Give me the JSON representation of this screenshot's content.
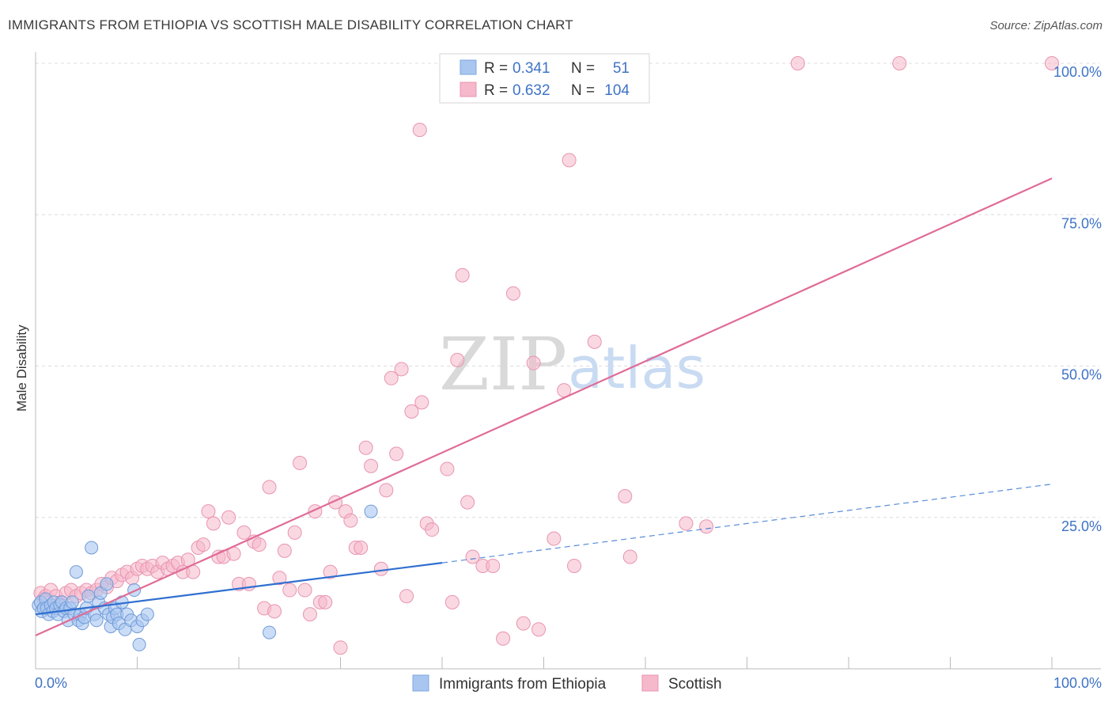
{
  "source": "Source: ZipAtlas.com",
  "colors": {
    "ethiopia": "#2f6fd0",
    "scottish": "#e06b97",
    "ethiopia_fill": "#a9c6f0",
    "scottish_fill": "#f6b8cb",
    "axis_text": "#3e73c6"
  },
  "chart_data": {
    "type": "scatter",
    "title": "IMMIGRANTS FROM ETHIOPIA VS SCOTTISH MALE DISABILITY CORRELATION CHART",
    "xlabel": "",
    "ylabel": "Male Disability",
    "xlim": [
      0,
      100
    ],
    "ylim": [
      0,
      100
    ],
    "x_tick_labels": [
      "0.0%",
      "100.0%"
    ],
    "y_tick_labels": [
      "25.0%",
      "50.0%",
      "75.0%",
      "100.0%"
    ],
    "y_ticks": [
      25,
      50,
      75,
      100
    ],
    "grid": "horizontal-dashed",
    "watermark": {
      "zip": "ZIP",
      "atlas": "atlas"
    },
    "legend_stats": [
      {
        "r_label": "R =",
        "r_value": "0.341",
        "n_label": "N =",
        "n_value": "51"
      },
      {
        "r_label": "R =",
        "r_value": "0.632",
        "n_label": "N =",
        "n_value": "104"
      }
    ],
    "series": [
      {
        "name": "Immigrants from Ethiopia",
        "trend": {
          "x0": 0,
          "y0": 9.0,
          "x1": 40,
          "y1": 17.5,
          "dash_to_x": 100,
          "dash_to_y": 30.5
        },
        "points": [
          [
            0.3,
            10.5
          ],
          [
            0.5,
            11
          ],
          [
            0.6,
            9.5
          ],
          [
            0.8,
            10
          ],
          [
            1,
            11.5
          ],
          [
            1.1,
            10
          ],
          [
            1.3,
            9
          ],
          [
            1.5,
            10.5
          ],
          [
            1.7,
            9.5
          ],
          [
            1.8,
            11
          ],
          [
            2,
            10
          ],
          [
            2.2,
            9
          ],
          [
            2.4,
            10.5
          ],
          [
            2.6,
            11
          ],
          [
            2.8,
            9.5
          ],
          [
            3,
            10
          ],
          [
            3.2,
            8
          ],
          [
            3.4,
            10
          ],
          [
            3.6,
            11
          ],
          [
            3.8,
            9
          ],
          [
            4,
            16
          ],
          [
            4.2,
            8
          ],
          [
            4.4,
            9
          ],
          [
            4.6,
            7.5
          ],
          [
            4.8,
            8.5
          ],
          [
            5,
            10
          ],
          [
            5.2,
            12
          ],
          [
            5.5,
            20
          ],
          [
            5.8,
            9
          ],
          [
            6,
            8
          ],
          [
            6.2,
            11
          ],
          [
            6.4,
            12.5
          ],
          [
            6.8,
            10
          ],
          [
            7,
            14
          ],
          [
            7.2,
            9
          ],
          [
            7.4,
            7
          ],
          [
            7.6,
            8.5
          ],
          [
            7.8,
            10
          ],
          [
            8,
            9
          ],
          [
            8.2,
            7.5
          ],
          [
            8.5,
            11
          ],
          [
            8.8,
            6.5
          ],
          [
            9,
            9
          ],
          [
            9.4,
            8
          ],
          [
            9.7,
            13
          ],
          [
            10,
            7
          ],
          [
            10.2,
            4
          ],
          [
            10.5,
            8
          ],
          [
            11,
            9
          ],
          [
            23,
            6
          ],
          [
            33,
            26
          ]
        ]
      },
      {
        "name": "Scottish",
        "trend": {
          "x0": 0,
          "y0": 5.5,
          "x1": 100,
          "y1": 81
        },
        "points": [
          [
            0.5,
            12.5
          ],
          [
            0.8,
            11.5
          ],
          [
            1,
            12
          ],
          [
            1.5,
            13
          ],
          [
            2,
            12
          ],
          [
            2.5,
            11
          ],
          [
            3,
            12.5
          ],
          [
            3.5,
            13
          ],
          [
            4,
            12
          ],
          [
            4.5,
            12.5
          ],
          [
            5,
            13
          ],
          [
            5.5,
            12.5
          ],
          [
            6,
            13
          ],
          [
            6.5,
            14
          ],
          [
            7,
            13.5
          ],
          [
            7.5,
            15
          ],
          [
            8,
            14.5
          ],
          [
            8.5,
            15.5
          ],
          [
            9,
            16
          ],
          [
            9.5,
            15
          ],
          [
            10,
            16.5
          ],
          [
            10.5,
            17
          ],
          [
            11,
            16.5
          ],
          [
            11.5,
            17
          ],
          [
            12,
            16
          ],
          [
            12.5,
            17.5
          ],
          [
            13,
            16.5
          ],
          [
            13.5,
            17
          ],
          [
            14,
            17.5
          ],
          [
            14.5,
            16
          ],
          [
            15,
            18
          ],
          [
            15.5,
            16
          ],
          [
            16,
            20
          ],
          [
            16.5,
            20.5
          ],
          [
            17,
            26
          ],
          [
            17.5,
            24
          ],
          [
            18,
            18.5
          ],
          [
            18.5,
            18.5
          ],
          [
            19,
            25
          ],
          [
            19.5,
            19
          ],
          [
            20,
            14
          ],
          [
            20.5,
            22.5
          ],
          [
            21,
            14
          ],
          [
            21.5,
            21
          ],
          [
            22,
            20.5
          ],
          [
            22.5,
            10
          ],
          [
            23,
            30
          ],
          [
            23.5,
            9.5
          ],
          [
            24,
            15
          ],
          [
            24.5,
            19.5
          ],
          [
            25,
            13
          ],
          [
            25.5,
            22.5
          ],
          [
            26,
            34
          ],
          [
            26.5,
            13
          ],
          [
            27,
            9
          ],
          [
            27.5,
            26
          ],
          [
            28,
            11
          ],
          [
            28.5,
            11
          ],
          [
            29,
            16
          ],
          [
            29.5,
            27.5
          ],
          [
            30,
            3.5
          ],
          [
            30.5,
            26
          ],
          [
            31,
            24.5
          ],
          [
            31.5,
            20
          ],
          [
            32,
            20
          ],
          [
            32.5,
            36.5
          ],
          [
            33,
            33.5
          ],
          [
            34,
            16.5
          ],
          [
            34.5,
            29.5
          ],
          [
            35,
            48
          ],
          [
            35.5,
            35.5
          ],
          [
            36,
            49.5
          ],
          [
            36.5,
            12
          ],
          [
            37,
            42.5
          ],
          [
            38,
            44
          ],
          [
            38.5,
            24
          ],
          [
            39,
            23
          ],
          [
            40.5,
            33
          ],
          [
            41,
            11
          ],
          [
            41.5,
            51
          ],
          [
            42,
            65
          ],
          [
            42.5,
            27.5
          ],
          [
            43,
            18.5
          ],
          [
            44,
            17
          ],
          [
            45,
            17
          ],
          [
            46,
            5
          ],
          [
            47,
            62
          ],
          [
            48,
            7.5
          ],
          [
            49,
            50.5
          ],
          [
            49.5,
            6.5
          ],
          [
            51,
            21.5
          ],
          [
            52,
            46
          ],
          [
            52.5,
            84
          ],
          [
            53,
            17
          ],
          [
            55,
            54
          ],
          [
            58,
            28.5
          ],
          [
            58.5,
            18.5
          ],
          [
            64,
            24
          ],
          [
            66,
            23.5
          ],
          [
            75,
            100
          ],
          [
            85,
            100
          ],
          [
            100,
            100
          ],
          [
            37.8,
            89
          ],
          [
            59,
            100
          ]
        ]
      }
    ]
  }
}
